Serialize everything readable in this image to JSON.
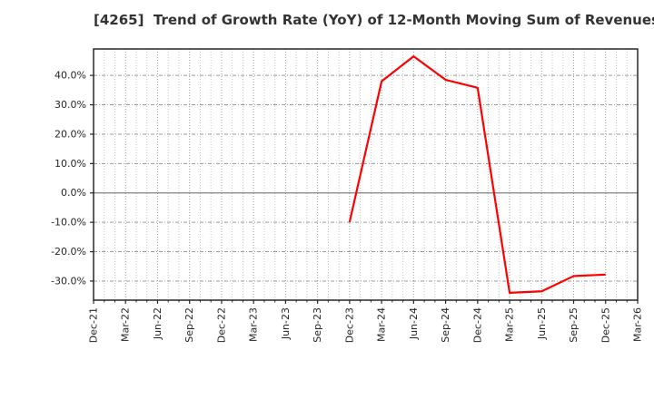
{
  "chart_data": {
    "type": "line",
    "ticker": "4265",
    "title": "[4265]  Trend of Growth Rate (YoY) of 12-Month Moving Sum of Revenues",
    "categories": [
      "Dec-21",
      "Mar-22",
      "Jun-22",
      "Sep-22",
      "Dec-22",
      "Mar-23",
      "Jun-23",
      "Sep-23",
      "Dec-23",
      "Mar-24",
      "Jun-24",
      "Sep-24",
      "Dec-24",
      "Mar-25",
      "Jun-25",
      "Sep-25",
      "Dec-25",
      "Mar-26"
    ],
    "series": [
      {
        "name": "Growth Rate (YoY) of 12-Month Moving Sum of Revenues",
        "color": "#ff0000",
        "x": [
          "Dec-23",
          "Mar-24",
          "Jun-24",
          "Sep-24",
          "Dec-24",
          "Mar-25",
          "Jun-25",
          "Sep-25",
          "Dec-25"
        ],
        "values": [
          -9.9,
          38.0,
          46.5,
          38.5,
          35.8,
          -34.0,
          -33.5,
          -28.3,
          -27.8
        ]
      }
    ],
    "ylim": [
      -36.5,
      49.0
    ],
    "yticks": [
      40,
      30,
      20,
      10,
      0,
      -10,
      -20,
      -30
    ],
    "ytick_suffix": "%",
    "xlabel": "",
    "ylabel": "",
    "grid": "on",
    "legend": "none",
    "minor_x_divisions_per_quarter": 3,
    "colors": {
      "line": "#ff0000",
      "grid_major": "#9a9a9a",
      "grid_minor": "#c6c6c6",
      "zero_line": "#808080",
      "spine": "#262626",
      "tick_text": "#262626",
      "title_text": "#333333",
      "background": "#ffffff"
    }
  }
}
